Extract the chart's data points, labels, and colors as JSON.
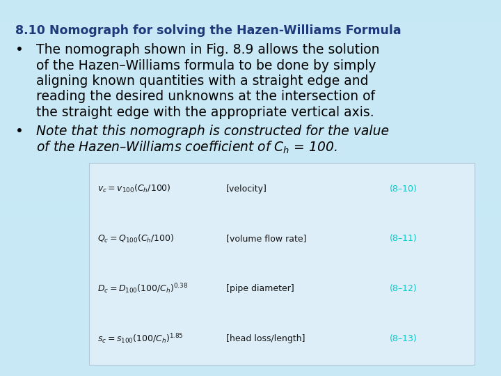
{
  "title": "8.10 Nomograph for solving the Hazen-Williams Formula",
  "title_color": "#1e3a7a",
  "title_fontsize": 12.5,
  "background_color": "#cce8f5",
  "bullet1_lines": [
    "The nomograph shown in Fig. 8.9 allows the solution",
    "of the Hazen–Williams formula to be done by simply",
    "aligning known quantities with a straight edge and",
    "reading the desired unknowns at the intersection of",
    "the straight edge with the appropriate vertical axis."
  ],
  "bullet2_lines": [
    "Note that this nomograph is constructed for the value",
    "of the Hazen–Williams coefficient of $C_h$ = 100."
  ],
  "bullet_fontsize": 13.5,
  "bullet_italic_fontsize": 13.5,
  "equations": [
    {
      "lhs": "$v_c = v_{100}(C_h/100)$",
      "label": "[velocity]",
      "tag": "(8–10)"
    },
    {
      "lhs": "$Q_c = Q_{100}(C_h/100)$",
      "label": "[volume flow rate]",
      "tag": "(8–11)"
    },
    {
      "lhs": "$D_c = D_{100}(100/C_h)^{0.38}$",
      "label": "[pipe diameter]",
      "tag": "(8–12)"
    },
    {
      "lhs": "$s_c = s_{100}(100/C_h)^{1.85}$",
      "label": "[head loss/length]",
      "tag": "(8–13)"
    }
  ],
  "eq_fontsize": 9.0,
  "eq_color": "#111111",
  "tag_color": "#00cccc",
  "box_facecolor": "#ddeef8",
  "box_edgecolor": "#b0c8d8"
}
